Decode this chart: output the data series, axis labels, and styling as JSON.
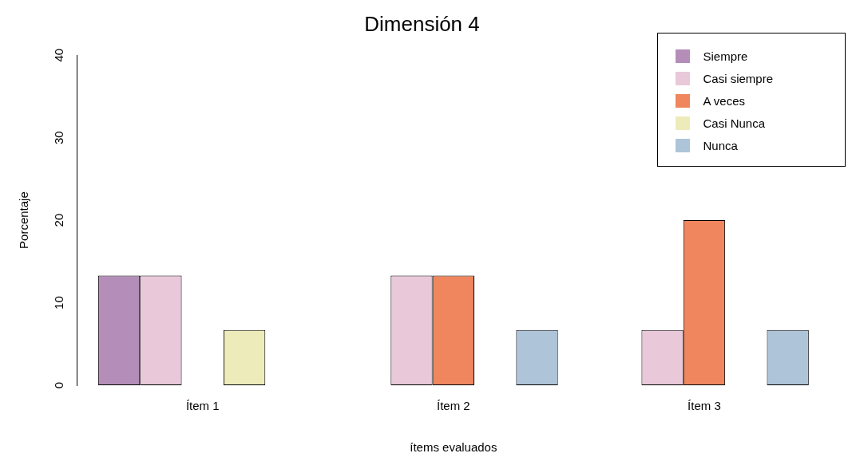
{
  "chart_data": {
    "type": "bar",
    "title": "Dimensión 4",
    "xlabel": "ítems evaluados",
    "ylabel": "Porcentaje",
    "categories": [
      "Ítem 1",
      "Ítem 2",
      "Ítem 3"
    ],
    "series": [
      {
        "name": "Siempre",
        "color": "#b48eb9",
        "values": [
          13.3,
          0,
          0
        ]
      },
      {
        "name": "Casi siempre",
        "color": "#e9c8d9",
        "values": [
          13.3,
          13.3,
          6.7
        ]
      },
      {
        "name": "A veces",
        "color": "#ef865d",
        "values": [
          0,
          13.3,
          20
        ]
      },
      {
        "name": "Casi Nunca",
        "color": "#eeebbb",
        "values": [
          6.7,
          0,
          0
        ]
      },
      {
        "name": "Nunca",
        "color": "#aec4d8",
        "values": [
          0,
          6.7,
          6.7
        ]
      }
    ],
    "ylim": [
      0,
      40
    ],
    "yticks": [
      0,
      10,
      20,
      30,
      40
    ],
    "grid": false,
    "legend": "top right"
  }
}
